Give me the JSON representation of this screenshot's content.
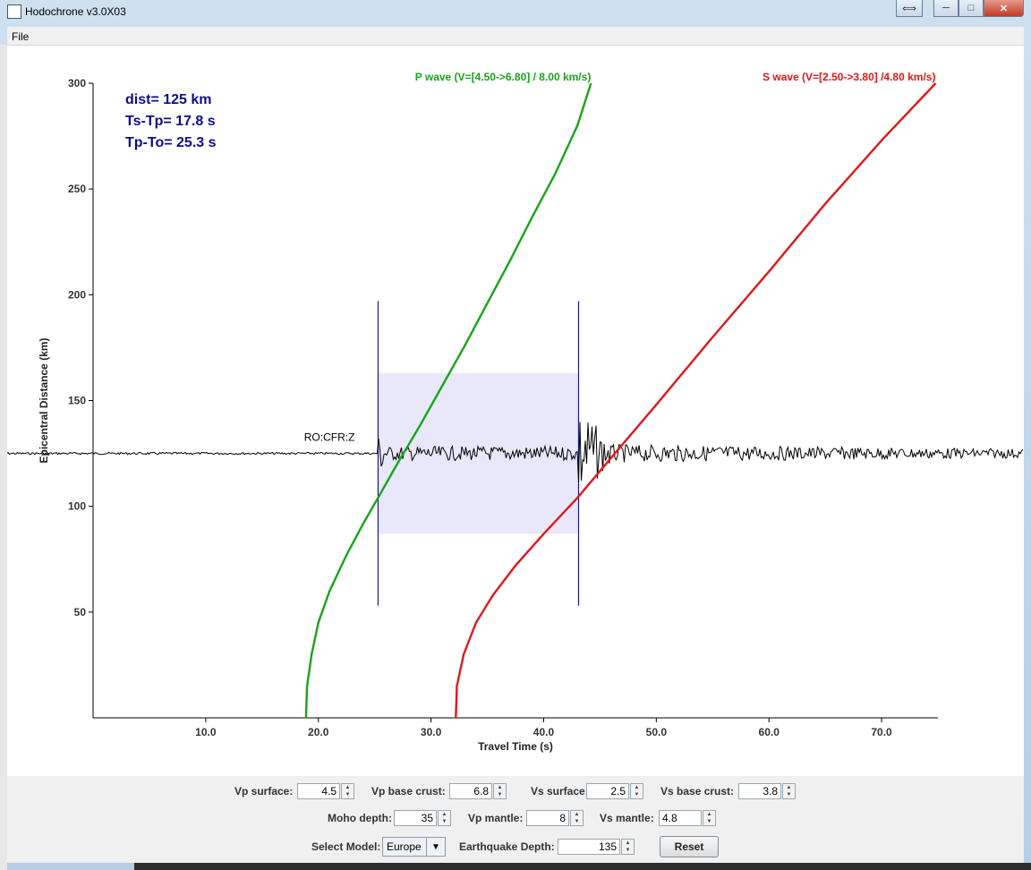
{
  "window": {
    "title": "Hodochrone v3.0X03",
    "controls": {
      "restore_label": "⟺",
      "minimize_label": "─",
      "maximize_label": "□",
      "close_label": "✕"
    }
  },
  "menu": {
    "file": "File"
  },
  "info": {
    "dist": "dist= 125 km",
    "ts_tp": "Ts-Tp= 17.8 s",
    "tp_to": "Tp-To= 25.3 s"
  },
  "station": "RO:CFR:Z",
  "chart_data": {
    "type": "line",
    "xlabel": "Travel Time (s)",
    "ylabel": "Epicentral Distance (km)",
    "xlim": [
      0,
      75
    ],
    "ylim": [
      0,
      300
    ],
    "x_ticks": [
      10,
      20,
      30,
      40,
      50,
      60,
      70
    ],
    "x_tick_labels": [
      "10.0",
      "20.0",
      "30.0",
      "40.0",
      "50.0",
      "60.0",
      "70.0"
    ],
    "y_ticks": [
      50,
      100,
      150,
      200,
      250,
      300
    ],
    "y_tick_labels": [
      "50",
      "100",
      "150",
      "200",
      "250",
      "300"
    ],
    "series": [
      {
        "name": "P wave (V=[4.50->6.80] / 8.00 km/s)",
        "color": "#1aa31a",
        "x": [
          18.9,
          19.0,
          19.4,
          20.0,
          21.0,
          22.5,
          24.0,
          25.3,
          27.0,
          29.0,
          31.0,
          33.0,
          35.0,
          37.0,
          39.0,
          41.0,
          43.0,
          44.2
        ],
        "y": [
          0,
          15,
          30,
          45,
          60,
          77,
          92,
          104,
          120,
          138,
          157,
          176,
          196,
          216,
          237,
          257,
          280,
          300
        ]
      },
      {
        "name": "S wave (V=[2.50->3.80] /4.80 km/s)",
        "color": "#e01818",
        "x": [
          32.2,
          32.3,
          32.9,
          34.0,
          35.5,
          37.5,
          40.0,
          43.0,
          46.0,
          50.0,
          55.0,
          60.0,
          65.0,
          70.0,
          74.8
        ],
        "y": [
          0,
          15,
          30,
          45,
          58,
          72,
          87,
          104,
          123,
          148,
          180,
          211,
          243,
          273,
          300
        ]
      }
    ],
    "p_pick_time": 25.3,
    "s_pick_time": 43.1,
    "pick_line_range_km": [
      53,
      197
    ],
    "window_range_km": [
      87,
      163
    ],
    "seismogram_baseline_km": 125
  },
  "controls": {
    "vp_surface": {
      "label": "Vp surface:",
      "value": "4.5"
    },
    "vp_base_crust": {
      "label": "Vp base crust:",
      "value": "6.8"
    },
    "vs_surface": {
      "label": "Vs surface:",
      "value": "2.5"
    },
    "vs_base_crust": {
      "label": "Vs base crust:",
      "value": "3.8"
    },
    "moho_depth": {
      "label": "Moho depth:",
      "value": "35"
    },
    "vp_mantle": {
      "label": "Vp mantle:",
      "value": "8"
    },
    "vs_mantle": {
      "label": "Vs mantle:",
      "value": "4.8"
    },
    "select_model": {
      "label": "Select Model:",
      "value": "Europe"
    },
    "eq_depth": {
      "label": "Earthquake Depth:",
      "value": "135"
    },
    "reset_label": "Reset"
  }
}
